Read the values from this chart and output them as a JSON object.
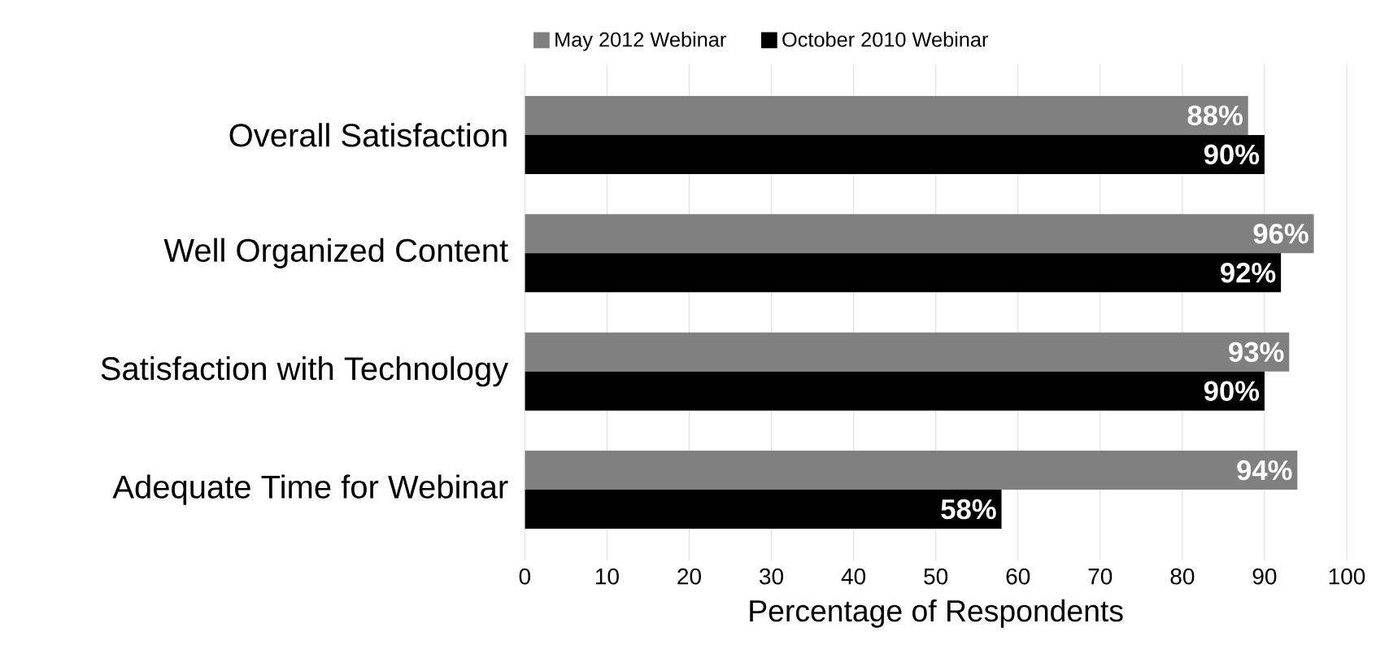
{
  "chart_data": {
    "type": "bar",
    "orientation": "horizontal",
    "categories": [
      "Overall Satisfaction",
      "Well Organized Content",
      "Satisfaction with Technology",
      "Adequate Time for Webinar"
    ],
    "series": [
      {
        "name": "May 2012 Webinar",
        "color": "#808080",
        "values": [
          88,
          96,
          93,
          94
        ],
        "value_labels": [
          "88%",
          "96%",
          "93%",
          "94%"
        ]
      },
      {
        "name": "October 2010 Webinar",
        "color": "#000000",
        "values": [
          90,
          92,
          90,
          58
        ],
        "value_labels": [
          "90%",
          "92%",
          "90%",
          "58%"
        ]
      }
    ],
    "xlabel": "Percentage of Respondents",
    "xlim": [
      0,
      100
    ],
    "xticks": [
      0,
      10,
      20,
      30,
      40,
      50,
      60,
      70,
      80,
      90,
      100
    ],
    "grid": "x",
    "legend": "top"
  }
}
